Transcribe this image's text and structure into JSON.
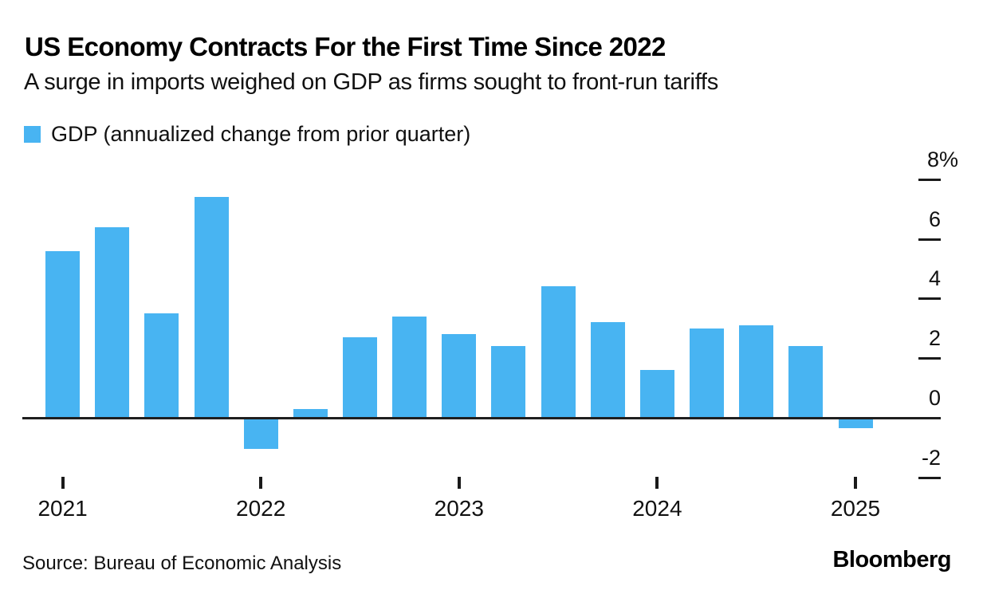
{
  "header": {
    "title": "US Economy Contracts For the First Time Since 2022",
    "subtitle": "A surge in imports weighed on GDP as firms sought to front-run tariffs"
  },
  "legend": {
    "label": "GDP (annualized change from prior quarter)",
    "swatch_color": "#48b4f2"
  },
  "footer": {
    "source": "Source: Bureau of Economic Analysis",
    "brand": "Bloomberg"
  },
  "colors": {
    "bar": "#48b4f2",
    "axis_line": "#1f1f1f",
    "text": "#111111"
  },
  "chart_data": {
    "type": "bar",
    "title": "US Economy Contracts For the First Time Since 2022",
    "subtitle": "A surge in imports weighed on GDP as firms sought to front-run tariffs",
    "legend_entries": [
      "GDP (annualized change from prior quarter)"
    ],
    "legend_position": "top-left",
    "grid": "off",
    "y_axis_side": "right",
    "xlabel": "",
    "ylabel": "GDP annualized change from prior quarter, %",
    "ylim": [
      -2.9,
      8.6
    ],
    "x": [
      "2021 Q1",
      "2021 Q2",
      "2021 Q3",
      "2021 Q4",
      "2022 Q1",
      "2022 Q2",
      "2022 Q3",
      "2022 Q4",
      "2023 Q1",
      "2023 Q2",
      "2023 Q3",
      "2023 Q4",
      "2024 Q1",
      "2024 Q2",
      "2024 Q3",
      "2024 Q4",
      "2025 Q1"
    ],
    "series": [
      {
        "name": "GDP (annualized change from prior quarter)",
        "values": [
          5.6,
          6.4,
          3.5,
          7.4,
          -1.0,
          0.3,
          2.7,
          3.4,
          2.8,
          2.4,
          4.4,
          3.2,
          1.6,
          3.0,
          3.1,
          2.4,
          -0.3
        ]
      }
    ],
    "x_tick_labels": [
      "2021",
      "2022",
      "2023",
      "2024",
      "2025"
    ],
    "x_tick_every_n_bars": 4,
    "y_ticks": [
      8,
      6,
      4,
      2,
      0,
      -2
    ],
    "y_tick_labels": [
      "8%",
      "6",
      "4",
      "2",
      "0",
      "-2"
    ],
    "bar_color": "#48b4f2"
  }
}
